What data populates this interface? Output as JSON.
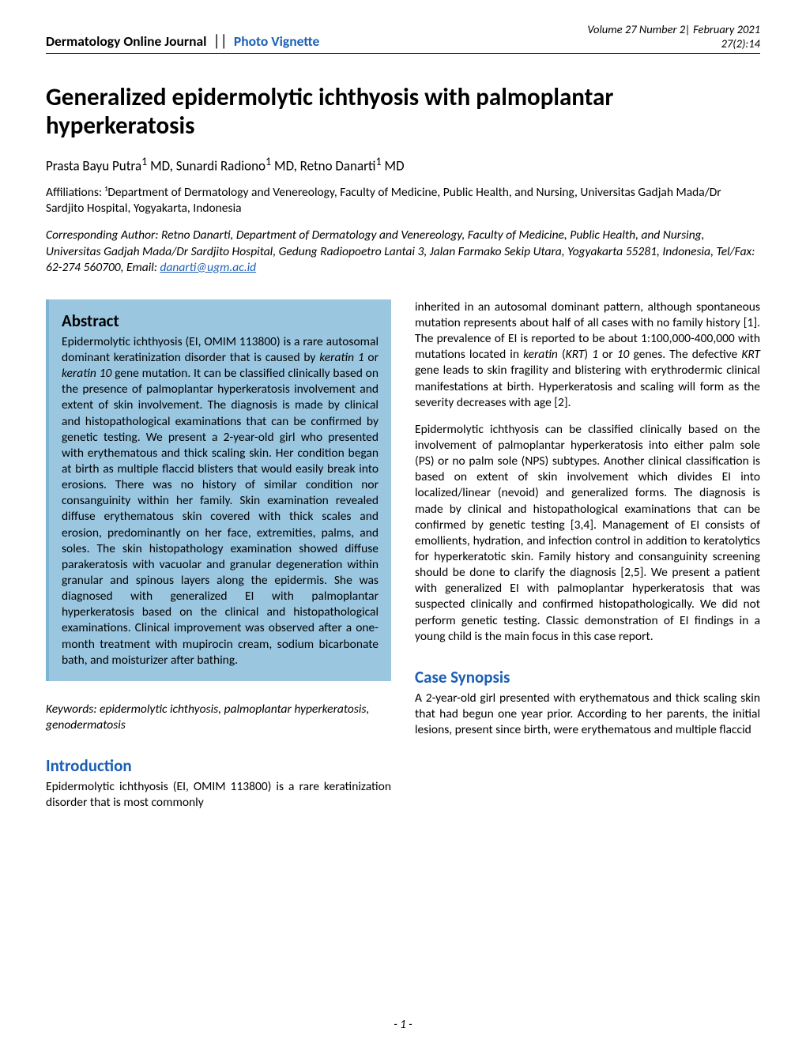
{
  "header": {
    "journal": "Dermatology Online Journal",
    "divider": "||",
    "section_type": "Photo Vignette",
    "volume_line": "Volume 27 Number 2| February 2021",
    "issue_line": "27(2):14"
  },
  "title": "Generalized epidermolytic ichthyosis with palmoplantar hyperkeratosis",
  "authors_html": "Prasta Bayu Putra<sup>1</sup> MD, Sunardi Radiono<sup>1</sup> MD, Retno Danarti<sup>1</sup> MD",
  "affiliations": "Affiliations: ¹Department of Dermatology and Venereology, Faculty of Medicine, Public Health, and Nursing, Universitas Gadjah Mada/Dr Sardjito Hospital, Yogyakarta, Indonesia",
  "corresponding_prefix": "Corresponding Author: Retno Danarti, Department of Dermatology and Venereology, Faculty of Medicine, Public Health, and Nursing, Universitas Gadjah Mada/Dr Sardjito Hospital, Gedung Radiopoetro Lantai 3, Jalan Farmako Sekip Utara, Yogyakarta 55281, Indonesia, Tel/Fax: 62-274 560700, Email: ",
  "corresponding_email": "danarti@ugm.ac.id",
  "abstract": {
    "heading": "Abstract",
    "text_html": "Epidermolytic ichthyosis (EI, OMIM 113800) is a rare autosomal dominant keratinization disorder that is caused by <em>keratin 1</em> or <em>keratin 10</em> gene mutation. It can be classified clinically based on the presence of palmoplantar hyperkeratosis involvement and extent of skin involvement. The diagnosis is made by clinical and histopathological examinations that can be confirmed by genetic testing. We present a 2-year-old girl who presented with erythematous and thick scaling skin. Her condition began at birth as multiple flaccid blisters that would easily break into erosions. There was no history of similar condition nor consanguinity within her family. Skin examination revealed diffuse erythematous skin covered with thick scales and erosion, predominantly on her face, extremities, palms, and soles. The skin histopathology examination showed diffuse parakeratosis with vacuolar and granular degeneration within granular and spinous layers along the epidermis. She was diagnosed with generalized EI with palmoplantar hyperkeratosis based on the clinical and histopathological examinations. Clinical improvement was observed after a one-month treatment with mupirocin cream, sodium bicarbonate bath, and moisturizer after bathing."
  },
  "keywords": "Keywords: epidermolytic ichthyosis, palmoplantar hyperkeratosis, genodermatosis",
  "introduction": {
    "heading": "Introduction",
    "col1_html": "Epidermolytic ichthyosis (EI, OMIM 113800) is a rare keratinization disorder that is most commonly",
    "col2_p1_html": "inherited in an autosomal dominant pattern, although spontaneous mutation represents about half of all cases with no family history [1]. The prevalence of EI is reported to be about 1:100,000-400,000 with mutations located in <em>keratin</em> (<em>KRT</em>) <em>1</em> or <em>10</em> genes. The defective <em>KRT</em> gene leads to skin fragility and blistering with erythrodermic clinical manifestations at birth. Hyperkeratosis and scaling will form as the severity decreases with age [2].",
    "col2_p2_html": "Epidermolytic ichthyosis can be classified clinically based on the involvement of palmoplantar hyperkeratosis into either palm sole (PS) or no palm sole (NPS) subtypes. Another clinical classification is based on extent of skin involvement which divides EI into localized/linear (nevoid) and generalized forms. The diagnosis is made by clinical and histopathological examinations that can be confirmed by genetic testing [3,4]. Management of EI consists of emollients, hydration, and infection control in addition to keratolytics for hyperkeratotic skin. Family history and consanguinity screening should be done to clarify the diagnosis [2,5]. We present a patient with generalized EI with palmoplantar hyperkeratosis that was suspected clinically and confirmed histopathologically. We did not perform genetic testing. Classic demonstration of EI findings in a young child is the main focus in this case report."
  },
  "case_synopsis": {
    "heading": "Case Synopsis",
    "text": "A 2-year-old girl presented with erythematous and thick scaling skin that had begun one year prior. According to her parents, the initial lesions, present since birth, were erythematous and multiple flaccid"
  },
  "page_number": "- 1 -",
  "colors": {
    "heading_blue": "#1a5fb4",
    "abstract_bg": "#9ac6e0",
    "abstract_border": "#7cb4d4",
    "rule": "#000000",
    "link": "#1a5fb4"
  }
}
